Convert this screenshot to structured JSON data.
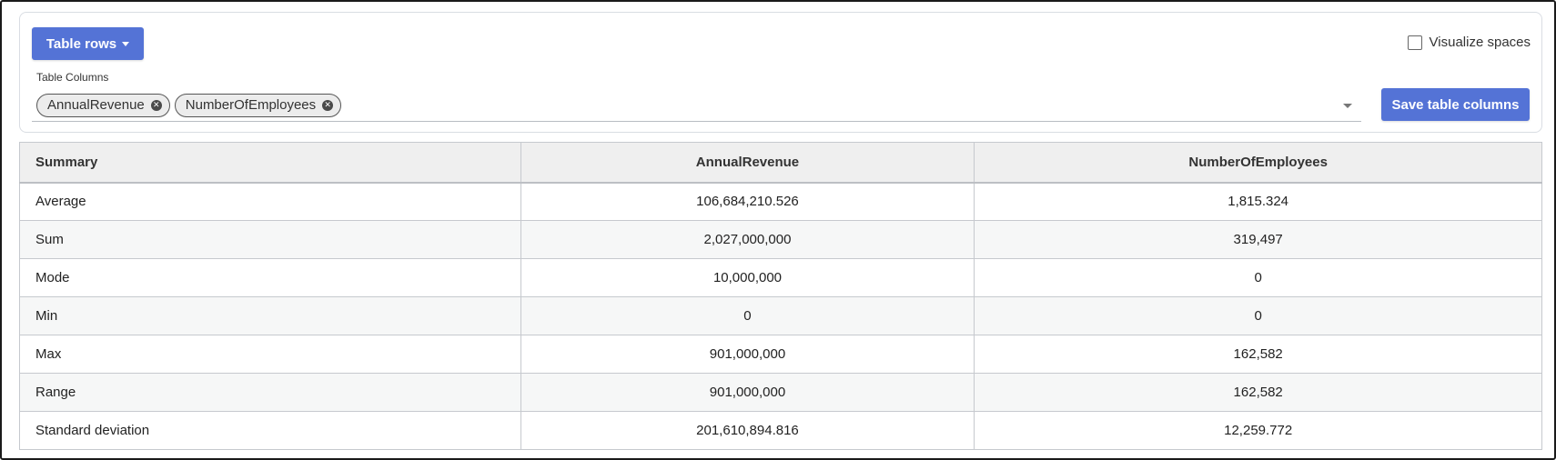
{
  "toolbar": {
    "rows_button_label": "Table rows",
    "visualize_label": "Visualize spaces",
    "visualize_checked": false,
    "columns_label": "Table Columns",
    "chips": [
      "AnnualRevenue",
      "NumberOfEmployees"
    ],
    "save_label": "Save table columns"
  },
  "table": {
    "headers": [
      "Summary",
      "AnnualRevenue",
      "NumberOfEmployees"
    ],
    "rows": [
      [
        "Average",
        "106,684,210.526",
        "1,815.324"
      ],
      [
        "Sum",
        "2,027,000,000",
        "319,497"
      ],
      [
        "Mode",
        "10,000,000",
        "0"
      ],
      [
        "Min",
        "0",
        "0"
      ],
      [
        "Max",
        "901,000,000",
        "162,582"
      ],
      [
        "Range",
        "901,000,000",
        "162,582"
      ],
      [
        "Standard deviation",
        "201,610,894.816",
        "12,259.772"
      ]
    ]
  },
  "colors": {
    "accent": "#5473d6"
  }
}
